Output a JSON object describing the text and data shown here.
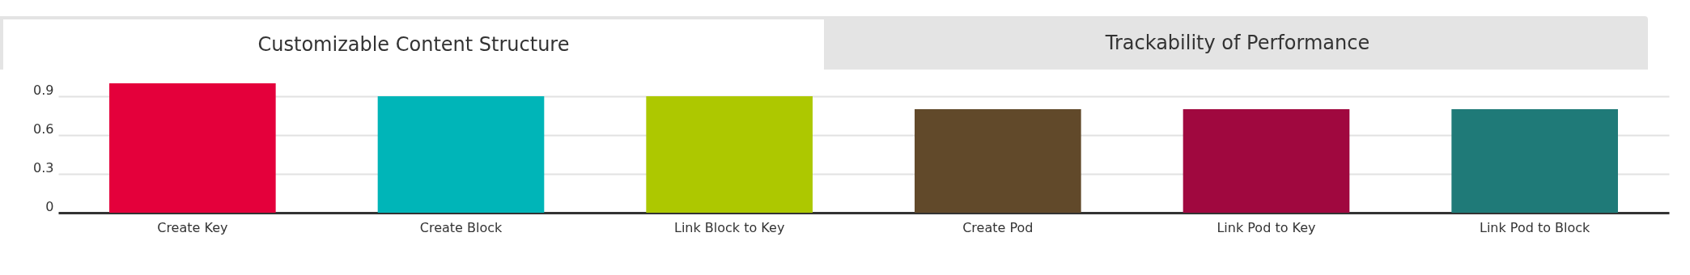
{
  "chart_data": {
    "type": "bar",
    "title": "Customizable Content Structure",
    "annotations": [
      "Trackability of Performance"
    ],
    "categories": [
      "Create Key",
      "Create Block",
      "Link Block to Key",
      "Create Pod",
      "Link Pod to Key",
      "Link Pod to Block"
    ],
    "values": [
      1.0,
      0.9,
      0.9,
      0.8,
      0.8,
      0.8
    ],
    "colors": [
      "#e4003b",
      "#00b5b8",
      "#adc800",
      "#61492a",
      "#a0083f",
      "#1f7a78"
    ],
    "ylim": [
      0,
      1
    ],
    "yticks": [
      0,
      0.3,
      0.6,
      0.9
    ],
    "grid": "y"
  }
}
